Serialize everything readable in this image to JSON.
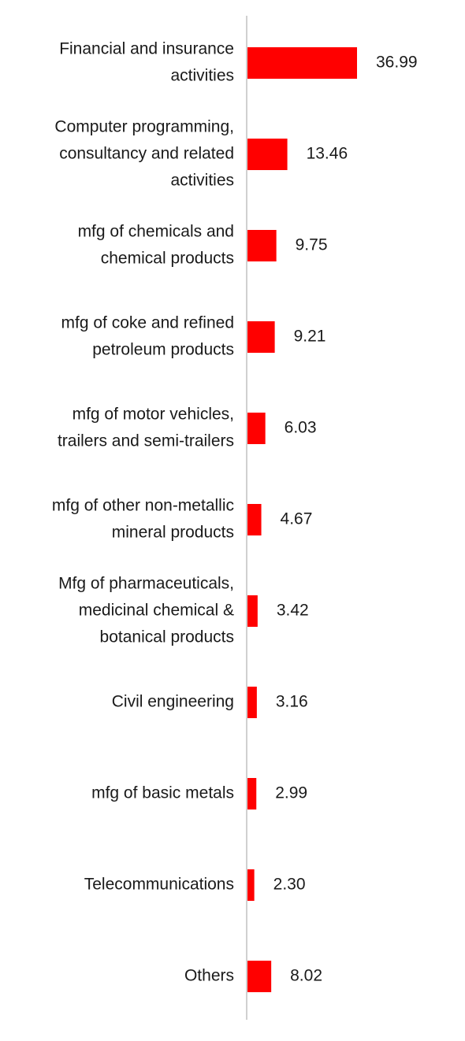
{
  "chart_data": {
    "type": "bar",
    "orientation": "horizontal",
    "categories": [
      [
        "Financial and insurance",
        "activities"
      ],
      [
        "Computer programming,",
        "consultancy and related",
        "activities"
      ],
      [
        "mfg of chemicals and",
        "chemical products"
      ],
      [
        "mfg of coke and refined",
        "petroleum products"
      ],
      [
        "mfg of motor vehicles,",
        "trailers and semi-trailers"
      ],
      [
        "mfg of other non-metallic",
        "mineral products"
      ],
      [
        "Mfg of pharmaceuticals,",
        "medicinal chemical &",
        "botanical products"
      ],
      [
        "Civil engineering"
      ],
      [
        "mfg of basic metals"
      ],
      [
        "Telecommunications"
      ],
      [
        "Others"
      ]
    ],
    "values": [
      36.99,
      13.46,
      9.75,
      9.21,
      6.03,
      4.67,
      3.42,
      3.16,
      2.99,
      2.3,
      8.02
    ],
    "value_labels": [
      "36.99",
      "13.46",
      "9.75",
      "9.21",
      "6.03",
      "4.67",
      "3.42",
      "3.16",
      "2.99",
      "2.30",
      "8.02"
    ],
    "bar_color": "#ff0000",
    "axis_color": "#d0d0d0",
    "text_color": "#1a1a1a",
    "grid": false,
    "legend": "none"
  }
}
